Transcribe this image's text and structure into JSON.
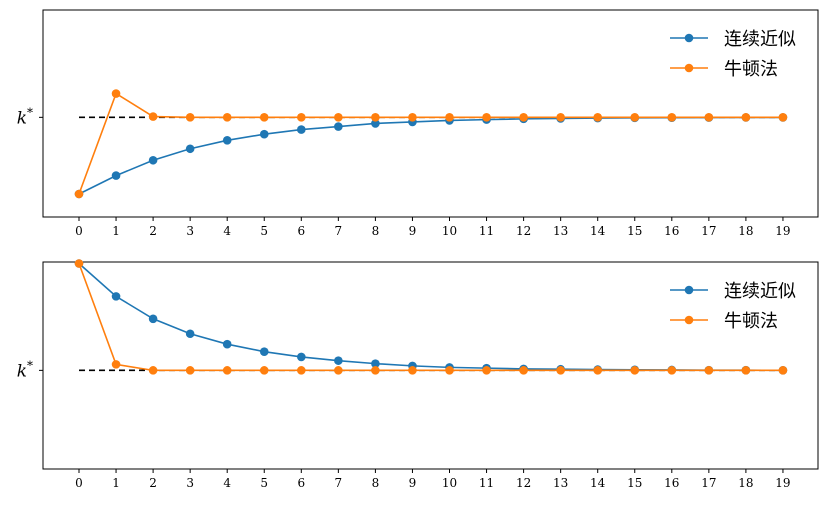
{
  "chart_data": [
    {
      "type": "line",
      "x": [
        0,
        1,
        2,
        3,
        4,
        5,
        6,
        7,
        8,
        9,
        10,
        11,
        12,
        13,
        14,
        15,
        16,
        17,
        18,
        19
      ],
      "ylim": [
        -1.3,
        1.4
      ],
      "reference_line": {
        "y": 0,
        "label_base": "k",
        "label_sup": "*",
        "style": "dashed",
        "color": "#000000"
      },
      "legend": {
        "placement": "top-right"
      },
      "series": [
        {
          "name": "连续近似",
          "color": "#1f77b4",
          "values": [
            -1.0,
            -0.76,
            -0.56,
            -0.41,
            -0.3,
            -0.22,
            -0.16,
            -0.12,
            -0.08,
            -0.06,
            -0.04,
            -0.03,
            -0.02,
            -0.015,
            -0.01,
            -0.007,
            -0.005,
            -0.003,
            -0.002,
            -0.001
          ]
        },
        {
          "name": "牛顿法",
          "color": "#ff7f0e",
          "values": [
            -1.0,
            0.31,
            0.01,
            0,
            0,
            0,
            0,
            0,
            0,
            0,
            0,
            0,
            0,
            0,
            0,
            0,
            0,
            0,
            0,
            0
          ]
        }
      ]
    },
    {
      "type": "line",
      "x": [
        0,
        1,
        2,
        3,
        4,
        5,
        6,
        7,
        8,
        9,
        10,
        11,
        12,
        13,
        14,
        15,
        16,
        17,
        18,
        19
      ],
      "ylim": [
        -1.32,
        1.45
      ],
      "reference_line": {
        "y": 0,
        "label_base": "k",
        "label_sup": "*",
        "style": "dashed",
        "color": "#000000"
      },
      "legend": {
        "placement": "top-right"
      },
      "series": [
        {
          "name": "连续近似",
          "color": "#1f77b4",
          "values": [
            1.43,
            0.99,
            0.69,
            0.49,
            0.35,
            0.25,
            0.18,
            0.13,
            0.09,
            0.06,
            0.04,
            0.03,
            0.02,
            0.015,
            0.01,
            0.007,
            0.005,
            0.003,
            0.002,
            0.001
          ]
        },
        {
          "name": "牛顿法",
          "color": "#ff7f0e",
          "values": [
            1.43,
            0.08,
            0.0,
            0,
            0,
            0,
            0,
            0,
            0,
            0,
            0,
            0,
            0,
            0,
            0,
            0,
            0,
            0,
            0,
            0
          ]
        }
      ]
    }
  ]
}
